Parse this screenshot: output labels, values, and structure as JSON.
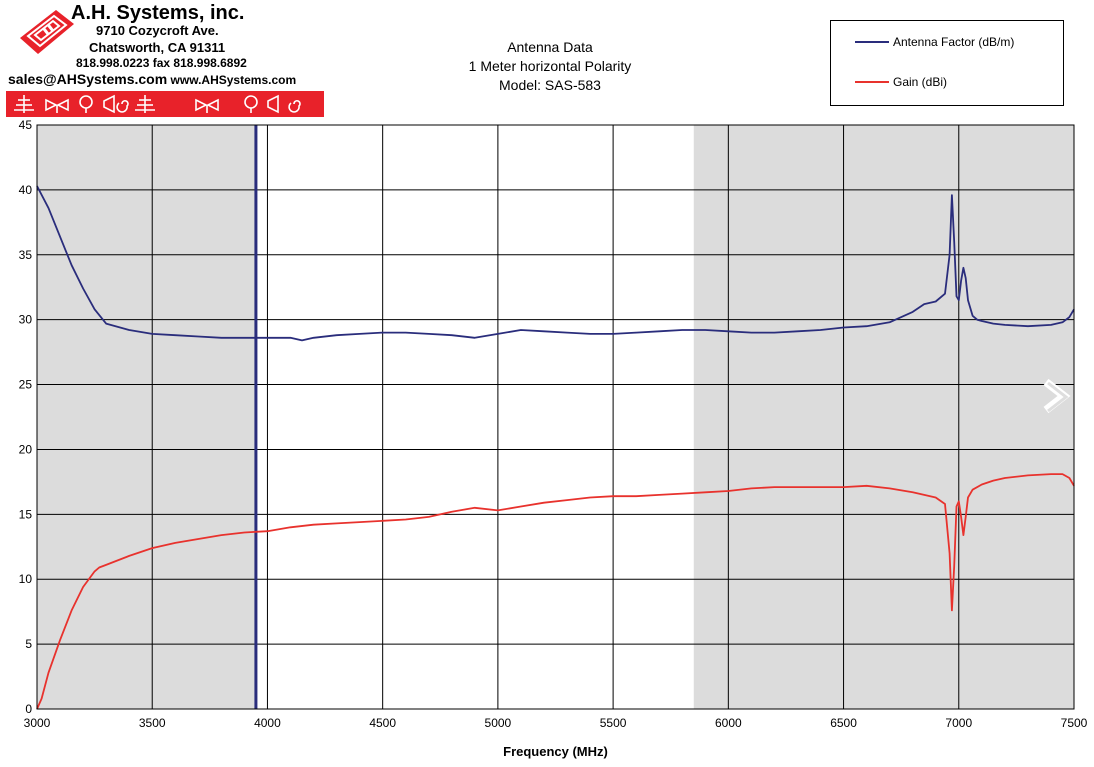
{
  "company": {
    "name": "A.H. Systems, inc.",
    "address": "9710 Cozycroft Ave.",
    "city": "Chatsworth, CA 91311",
    "phone": "818.998.0223 fax 818.998.6892",
    "email": "sales@AHSystems.com",
    "website": "www.AHSystems.com",
    "brand_color": "#e8222a"
  },
  "chart_data": {
    "type": "line",
    "title": [
      "Antenna Data",
      "1 Meter horizontal Polarity",
      "Model: SAS-583"
    ],
    "xlabel": "Frequency (MHz)",
    "ylabel": "",
    "xlim": [
      3000,
      7500
    ],
    "ylim": [
      0,
      45
    ],
    "x_ticks": [
      3000,
      3500,
      4000,
      4500,
      5000,
      5500,
      6000,
      6500,
      7000,
      7500
    ],
    "y_ticks": [
      0,
      5,
      10,
      15,
      20,
      25,
      30,
      35,
      40,
      45
    ],
    "grid": true,
    "legend_position": "top-right",
    "shaded_ranges": [
      [
        3000,
        3950
      ],
      [
        5850,
        7500
      ]
    ],
    "marker_line_x": 3950,
    "series": [
      {
        "name": "Antenna Factor (dB/m)",
        "color": "#2a2d7c",
        "x": [
          3000,
          3050,
          3100,
          3150,
          3200,
          3250,
          3300,
          3400,
          3500,
          3600,
          3700,
          3800,
          3900,
          4000,
          4100,
          4150,
          4200,
          4300,
          4400,
          4500,
          4600,
          4700,
          4800,
          4900,
          5000,
          5100,
          5200,
          5300,
          5400,
          5500,
          5600,
          5700,
          5800,
          5900,
          6000,
          6100,
          6200,
          6300,
          6400,
          6500,
          6600,
          6700,
          6800,
          6850,
          6900,
          6940,
          6960,
          6970,
          6980,
          6990,
          7000,
          7010,
          7020,
          7030,
          7040,
          7060,
          7080,
          7100,
          7150,
          7200,
          7300,
          7400,
          7450,
          7480,
          7500
        ],
        "values": [
          40.3,
          38.6,
          36.4,
          34.2,
          32.4,
          30.8,
          29.7,
          29.2,
          28.9,
          28.8,
          28.7,
          28.6,
          28.6,
          28.6,
          28.6,
          28.4,
          28.6,
          28.8,
          28.9,
          29.0,
          29.0,
          28.9,
          28.8,
          28.6,
          28.9,
          29.2,
          29.1,
          29.0,
          28.9,
          28.9,
          29.0,
          29.1,
          29.2,
          29.2,
          29.1,
          29.0,
          29.0,
          29.1,
          29.2,
          29.4,
          29.5,
          29.8,
          30.6,
          31.2,
          31.4,
          32.0,
          35.0,
          39.6,
          36.0,
          31.8,
          31.5,
          33.0,
          34.0,
          33.2,
          31.5,
          30.3,
          30.0,
          29.9,
          29.7,
          29.6,
          29.5,
          29.6,
          29.8,
          30.2,
          30.8
        ]
      },
      {
        "name": "Gain (dBi)",
        "color": "#e8322d",
        "x": [
          3000,
          3020,
          3050,
          3100,
          3150,
          3200,
          3250,
          3270,
          3300,
          3400,
          3500,
          3600,
          3700,
          3800,
          3900,
          4000,
          4100,
          4200,
          4300,
          4400,
          4500,
          4600,
          4700,
          4800,
          4900,
          5000,
          5100,
          5200,
          5300,
          5400,
          5500,
          5600,
          5700,
          5800,
          5900,
          6000,
          6100,
          6200,
          6300,
          6400,
          6500,
          6600,
          6700,
          6800,
          6900,
          6940,
          6960,
          6970,
          6980,
          6990,
          7000,
          7010,
          7020,
          7030,
          7040,
          7060,
          7100,
          7150,
          7200,
          7300,
          7400,
          7450,
          7480,
          7500
        ],
        "values": [
          0.0,
          0.8,
          2.8,
          5.3,
          7.6,
          9.4,
          10.6,
          10.9,
          11.1,
          11.8,
          12.4,
          12.8,
          13.1,
          13.4,
          13.6,
          13.7,
          14.0,
          14.2,
          14.3,
          14.4,
          14.5,
          14.6,
          14.8,
          15.2,
          15.5,
          15.3,
          15.6,
          15.9,
          16.1,
          16.3,
          16.4,
          16.4,
          16.5,
          16.6,
          16.7,
          16.8,
          17.0,
          17.1,
          17.1,
          17.1,
          17.1,
          17.2,
          17.0,
          16.7,
          16.3,
          15.8,
          12.0,
          7.6,
          11.0,
          15.6,
          16.0,
          14.8,
          13.4,
          14.8,
          16.3,
          16.9,
          17.3,
          17.6,
          17.8,
          18.0,
          18.1,
          18.1,
          17.8,
          17.2
        ]
      }
    ]
  }
}
